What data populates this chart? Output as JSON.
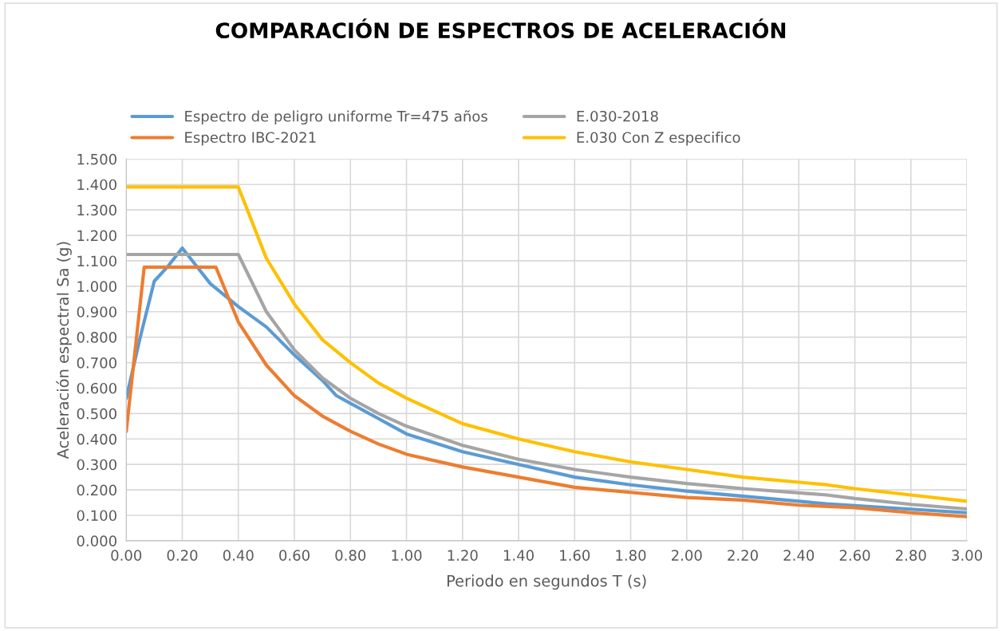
{
  "chart_data": {
    "type": "line",
    "title": "COMPARACIÓN DE ESPECTROS DE ACELERACIÓN",
    "xlabel": "Periodo en segundos T (s)",
    "ylabel": "Aceleración espectral Sa (g)",
    "series": [
      {
        "name": "Espectro de peligro uniforme Tr=475 años",
        "color": "#5b9bd5",
        "x": [
          0,
          0.05,
          0.1,
          0.15,
          0.2,
          0.25,
          0.3,
          0.4,
          0.5,
          0.6,
          0.7,
          0.75,
          0.8,
          0.9,
          0.95,
          1.0,
          1.2,
          1.4,
          1.6,
          1.8,
          2.0,
          2.5,
          3.0
        ],
        "values": [
          0.56,
          0.8,
          1.02,
          1.08,
          1.15,
          1.08,
          1.01,
          0.92,
          0.84,
          0.73,
          0.63,
          0.57,
          0.54,
          0.48,
          0.45,
          0.42,
          0.35,
          0.3,
          0.25,
          0.22,
          0.195,
          0.145,
          0.11
        ]
      },
      {
        "name": "Espectro IBC-2021",
        "color": "#ed7d31",
        "x": [
          0,
          0.064,
          0.32,
          0.4,
          0.5,
          0.6,
          0.7,
          0.8,
          0.9,
          1.0,
          1.2,
          1.4,
          1.6,
          1.8,
          2.0,
          2.2,
          2.4,
          2.6,
          2.8,
          3.0
        ],
        "values": [
          0.43,
          1.075,
          1.075,
          0.86,
          0.69,
          0.57,
          0.49,
          0.43,
          0.38,
          0.34,
          0.29,
          0.25,
          0.21,
          0.19,
          0.17,
          0.16,
          0.14,
          0.13,
          0.11,
          0.095
        ]
      },
      {
        "name": "E.030-2018",
        "color": "#a5a5a5",
        "x": [
          0,
          0.4,
          0.5,
          0.6,
          0.7,
          0.8,
          0.9,
          1.0,
          1.2,
          1.4,
          1.6,
          1.8,
          2.0,
          2.2,
          2.5,
          2.6,
          2.8,
          3.0
        ],
        "values": [
          1.125,
          1.125,
          0.9,
          0.75,
          0.64,
          0.56,
          0.5,
          0.45,
          0.375,
          0.32,
          0.28,
          0.25,
          0.225,
          0.205,
          0.18,
          0.166,
          0.143,
          0.125
        ]
      },
      {
        "name": "E.030 Con Z especifico",
        "color": "#ffc000",
        "x": [
          0,
          0.4,
          0.5,
          0.6,
          0.7,
          0.8,
          0.9,
          1.0,
          1.2,
          1.4,
          1.6,
          1.8,
          2.0,
          2.2,
          2.5,
          2.6,
          2.8,
          3.0
        ],
        "values": [
          1.39,
          1.39,
          1.11,
          0.93,
          0.79,
          0.7,
          0.62,
          0.56,
          0.46,
          0.4,
          0.35,
          0.31,
          0.28,
          0.25,
          0.22,
          0.205,
          0.18,
          0.155
        ]
      }
    ],
    "xlim": [
      0,
      3
    ],
    "ylim": [
      0,
      1.5
    ],
    "xticks": [
      {
        "value": 0,
        "label": "0.00"
      },
      {
        "value": 0.2,
        "label": "0.20"
      },
      {
        "value": 0.4,
        "label": "0.40"
      },
      {
        "value": 0.6,
        "label": "0.60"
      },
      {
        "value": 0.8,
        "label": "0.80"
      },
      {
        "value": 1.0,
        "label": "1.00"
      },
      {
        "value": 1.2,
        "label": "1.20"
      },
      {
        "value": 1.4,
        "label": "1.40"
      },
      {
        "value": 1.6,
        "label": "1.60"
      },
      {
        "value": 1.8,
        "label": "1.80"
      },
      {
        "value": 2.0,
        "label": "2.00"
      },
      {
        "value": 2.2,
        "label": "2.20"
      },
      {
        "value": 2.4,
        "label": "2.40"
      },
      {
        "value": 2.6,
        "label": "2.60"
      },
      {
        "value": 2.8,
        "label": "2.80"
      },
      {
        "value": 3.0,
        "label": "3.00"
      }
    ],
    "yticks": [
      {
        "value": 0,
        "label": "0.000"
      },
      {
        "value": 0.1,
        "label": "0.100"
      },
      {
        "value": 0.2,
        "label": "0.200"
      },
      {
        "value": 0.3,
        "label": "0.300"
      },
      {
        "value": 0.4,
        "label": "0.400"
      },
      {
        "value": 0.5,
        "label": "0.500"
      },
      {
        "value": 0.6,
        "label": "0.600"
      },
      {
        "value": 0.7,
        "label": "0.700"
      },
      {
        "value": 0.8,
        "label": "0.800"
      },
      {
        "value": 0.9,
        "label": "0.900"
      },
      {
        "value": 1.0,
        "label": "1.000"
      },
      {
        "value": 1.1,
        "label": "1.100"
      },
      {
        "value": 1.2,
        "label": "1.200"
      },
      {
        "value": 1.3,
        "label": "1.300"
      },
      {
        "value": 1.4,
        "label": "1.400"
      },
      {
        "value": 1.5,
        "label": "1.500"
      }
    ],
    "grid": true,
    "legend": "top",
    "marker": "none",
    "line_style": "solid"
  }
}
